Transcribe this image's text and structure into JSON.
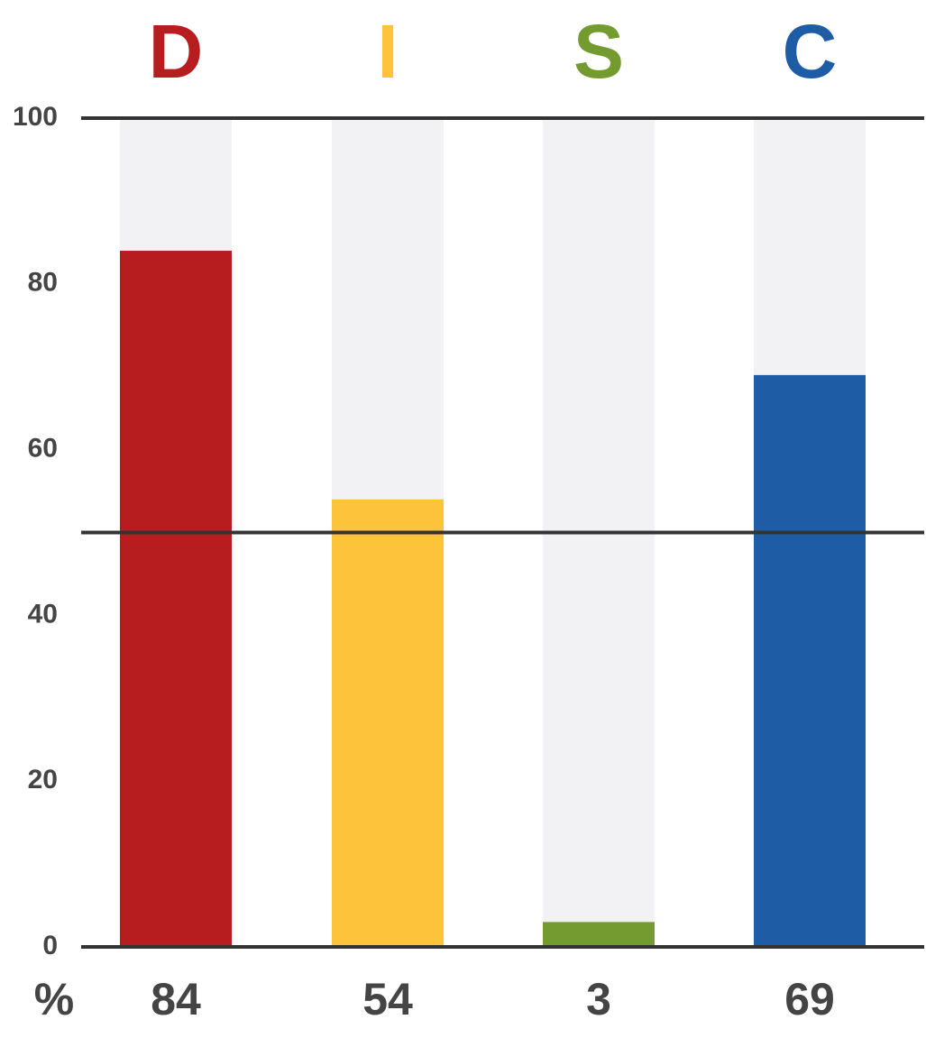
{
  "chart_data": {
    "type": "bar",
    "categories": [
      "D",
      "I",
      "S",
      "C"
    ],
    "values": [
      84,
      54,
      3,
      69
    ],
    "colors": [
      "#b71c1f",
      "#fdc33a",
      "#739b2f",
      "#1f5ca6"
    ],
    "track_color": "#f2f2f4",
    "ylim": [
      0,
      100
    ],
    "yticks": [
      0,
      20,
      40,
      60,
      80,
      100
    ],
    "reference_lines": [
      0,
      50,
      100
    ],
    "unit_label": "%"
  }
}
